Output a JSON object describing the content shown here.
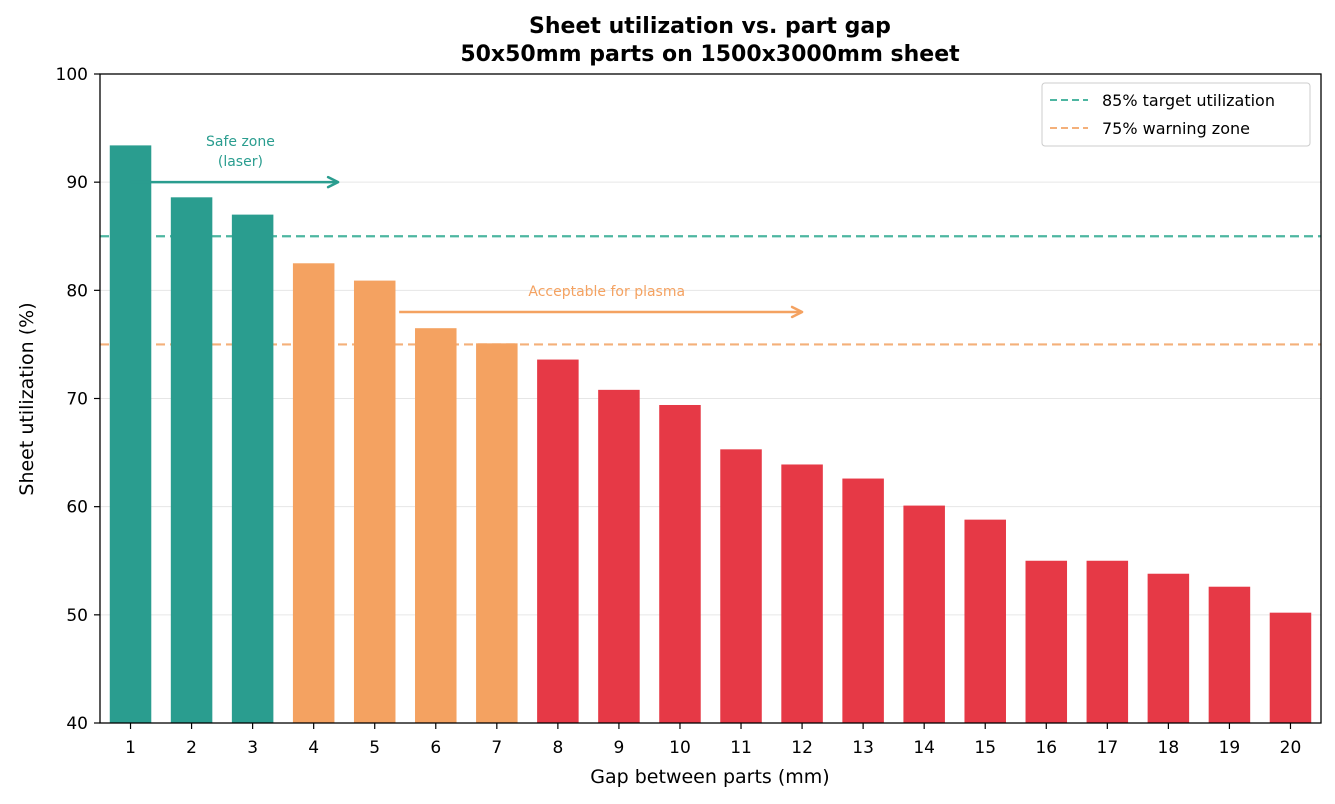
{
  "chart_data": {
    "type": "bar",
    "title": "Sheet utilization vs. part gap",
    "subtitle": "50x50mm parts on 1500x3000mm sheet",
    "xlabel": "Gap between parts (mm)",
    "ylabel": "Sheet utilization (%)",
    "ylim": [
      40,
      100
    ],
    "yticks": [
      40,
      50,
      60,
      70,
      80,
      90,
      100
    ],
    "grid": true,
    "categories": [
      "1",
      "2",
      "3",
      "4",
      "5",
      "6",
      "7",
      "8",
      "9",
      "10",
      "11",
      "12",
      "13",
      "14",
      "15",
      "16",
      "17",
      "18",
      "19",
      "20"
    ],
    "values": [
      93.4,
      88.6,
      87.0,
      82.5,
      80.9,
      76.5,
      75.1,
      73.6,
      70.8,
      69.4,
      65.3,
      63.9,
      62.6,
      60.1,
      58.8,
      55.0,
      55.0,
      53.8,
      52.6,
      50.2
    ],
    "bar_colors": [
      "#2a9d8f",
      "#2a9d8f",
      "#2a9d8f",
      "#f4a261",
      "#f4a261",
      "#f4a261",
      "#f4a261",
      "#e63946",
      "#e63946",
      "#e63946",
      "#e63946",
      "#e63946",
      "#e63946",
      "#e63946",
      "#e63946",
      "#e63946",
      "#e63946",
      "#e63946",
      "#e63946",
      "#e63946"
    ],
    "reference_lines": [
      {
        "label": "85% target utilization",
        "value": 85,
        "color": "#4db6a1"
      },
      {
        "label": "75% warning zone",
        "value": 75,
        "color": "#f4b07a"
      }
    ],
    "legend_position": "top-right",
    "annotations": [
      {
        "text_lines": [
          "Safe zone",
          "(laser)"
        ],
        "arrow_from_x": 1,
        "arrow_to_x": 4.4,
        "arrow_y": 90,
        "color": "#2a9d8f"
      },
      {
        "text_lines": [
          "Acceptable for plasma"
        ],
        "arrow_from_x": 5.4,
        "arrow_to_x": 12,
        "arrow_y": 78,
        "color": "#f4a261"
      }
    ]
  }
}
